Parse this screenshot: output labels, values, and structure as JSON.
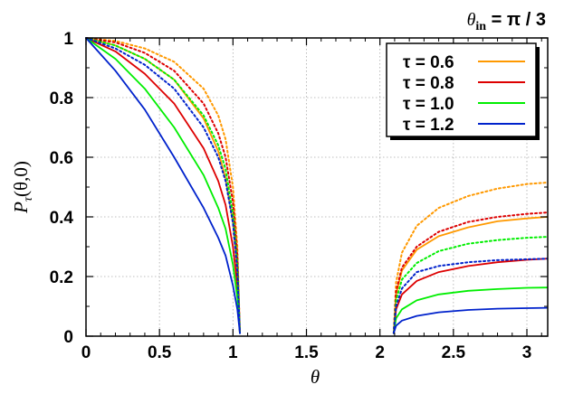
{
  "chart_data": {
    "type": "line",
    "title": "",
    "annotation": {
      "symbol": "θ",
      "subscript": "in",
      "rest": " = π / 3"
    },
    "xlabel": "θ",
    "ylabel": {
      "main": "P",
      "sub": "τ",
      "rest": "(θ,0)"
    },
    "xlim": [
      0,
      3.14159
    ],
    "ylim": [
      0,
      1
    ],
    "xticks": [
      "0",
      "0.5",
      "1",
      "1.5",
      "2",
      "2.5",
      "3"
    ],
    "xtick_values": [
      0,
      0.5,
      1,
      1.5,
      2,
      2.5,
      3
    ],
    "yticks": [
      "0",
      "0.2",
      "0.4",
      "0.6",
      "0.8",
      "1"
    ],
    "ytick_values": [
      0,
      0.2,
      0.4,
      0.6,
      0.8,
      1
    ],
    "grid": true,
    "legend_position": "top-right",
    "series": [
      {
        "name": "τ = 0.6",
        "color": "#ff9900",
        "solid": {
          "left_x": [
            0,
            0.2,
            0.4,
            0.6,
            0.8,
            0.9,
            0.95,
            1.0,
            1.03,
            1.047
          ],
          "left_y": [
            1,
            0.975,
            0.93,
            0.86,
            0.73,
            0.62,
            0.53,
            0.38,
            0.22,
            0.01
          ],
          "right_x": [
            2.094,
            2.11,
            2.15,
            2.25,
            2.4,
            2.6,
            2.8,
            3.0,
            3.14
          ],
          "right_y": [
            0.01,
            0.14,
            0.22,
            0.29,
            0.335,
            0.365,
            0.385,
            0.395,
            0.4
          ]
        },
        "dotted": {
          "left_x": [
            0,
            0.2,
            0.4,
            0.6,
            0.8,
            0.9,
            0.95,
            1.0,
            1.03,
            1.047
          ],
          "left_y": [
            1,
            0.99,
            0.965,
            0.92,
            0.83,
            0.74,
            0.66,
            0.5,
            0.3,
            0.01
          ],
          "right_x": [
            2.094,
            2.11,
            2.15,
            2.25,
            2.4,
            2.6,
            2.8,
            3.0,
            3.14
          ],
          "right_y": [
            0.01,
            0.18,
            0.28,
            0.37,
            0.43,
            0.47,
            0.495,
            0.51,
            0.515
          ]
        }
      },
      {
        "name": "τ = 0.8",
        "color": "#dd0000",
        "solid": {
          "left_x": [
            0,
            0.2,
            0.4,
            0.6,
            0.8,
            0.9,
            0.95,
            1.0,
            1.03,
            1.047
          ],
          "left_y": [
            1,
            0.955,
            0.88,
            0.78,
            0.63,
            0.52,
            0.44,
            0.3,
            0.17,
            0.01
          ],
          "right_x": [
            2.094,
            2.11,
            2.15,
            2.25,
            2.4,
            2.6,
            2.8,
            3.0,
            3.14
          ],
          "right_y": [
            0.01,
            0.09,
            0.14,
            0.185,
            0.215,
            0.235,
            0.248,
            0.256,
            0.26
          ]
        },
        "dotted": {
          "left_x": [
            0,
            0.2,
            0.4,
            0.6,
            0.8,
            0.9,
            0.95,
            1.0,
            1.03,
            1.047
          ],
          "left_y": [
            1,
            0.985,
            0.95,
            0.89,
            0.78,
            0.68,
            0.6,
            0.45,
            0.27,
            0.01
          ],
          "right_x": [
            2.094,
            2.11,
            2.15,
            2.25,
            2.4,
            2.6,
            2.8,
            3.0,
            3.14
          ],
          "right_y": [
            0.01,
            0.15,
            0.23,
            0.3,
            0.35,
            0.383,
            0.4,
            0.41,
            0.415
          ]
        }
      },
      {
        "name": "τ = 1.0",
        "color": "#00ee00",
        "solid": {
          "left_x": [
            0,
            0.2,
            0.4,
            0.6,
            0.8,
            0.9,
            0.95,
            1.0,
            1.03,
            1.047
          ],
          "left_y": [
            1,
            0.93,
            0.83,
            0.7,
            0.54,
            0.43,
            0.36,
            0.24,
            0.13,
            0.01
          ],
          "right_x": [
            2.094,
            2.11,
            2.15,
            2.25,
            2.4,
            2.6,
            2.8,
            3.0,
            3.14
          ],
          "right_y": [
            0.01,
            0.06,
            0.09,
            0.12,
            0.14,
            0.152,
            0.158,
            0.162,
            0.163
          ]
        },
        "dotted": {
          "left_x": [
            0,
            0.2,
            0.4,
            0.6,
            0.8,
            0.9,
            0.95,
            1.0,
            1.03,
            1.047
          ],
          "left_y": [
            1,
            0.975,
            0.93,
            0.86,
            0.74,
            0.64,
            0.56,
            0.41,
            0.24,
            0.01
          ],
          "right_x": [
            2.094,
            2.11,
            2.15,
            2.25,
            2.4,
            2.6,
            2.8,
            3.0,
            3.14
          ],
          "right_y": [
            0.01,
            0.12,
            0.19,
            0.245,
            0.285,
            0.31,
            0.322,
            0.33,
            0.333
          ]
        }
      },
      {
        "name": "τ = 1.2",
        "color": "#0022cc",
        "solid": {
          "left_x": [
            0,
            0.2,
            0.4,
            0.6,
            0.8,
            0.9,
            0.95,
            1.0,
            1.03,
            1.047
          ],
          "left_y": [
            1,
            0.89,
            0.76,
            0.6,
            0.43,
            0.33,
            0.27,
            0.17,
            0.09,
            0.01
          ],
          "right_x": [
            2.094,
            2.11,
            2.15,
            2.25,
            2.4,
            2.6,
            2.8,
            3.0,
            3.14
          ],
          "right_y": [
            0.01,
            0.035,
            0.052,
            0.068,
            0.08,
            0.088,
            0.092,
            0.094,
            0.095
          ]
        },
        "dotted": {
          "left_x": [
            0,
            0.2,
            0.4,
            0.6,
            0.8,
            0.9,
            0.95,
            1.0,
            1.03,
            1.047
          ],
          "left_y": [
            1,
            0.965,
            0.91,
            0.83,
            0.7,
            0.6,
            0.52,
            0.38,
            0.22,
            0.01
          ],
          "right_x": [
            2.094,
            2.11,
            2.15,
            2.25,
            2.4,
            2.6,
            2.8,
            3.0,
            3.14
          ],
          "right_y": [
            0.01,
            0.1,
            0.16,
            0.215,
            0.235,
            0.248,
            0.255,
            0.258,
            0.26
          ]
        }
      }
    ]
  }
}
